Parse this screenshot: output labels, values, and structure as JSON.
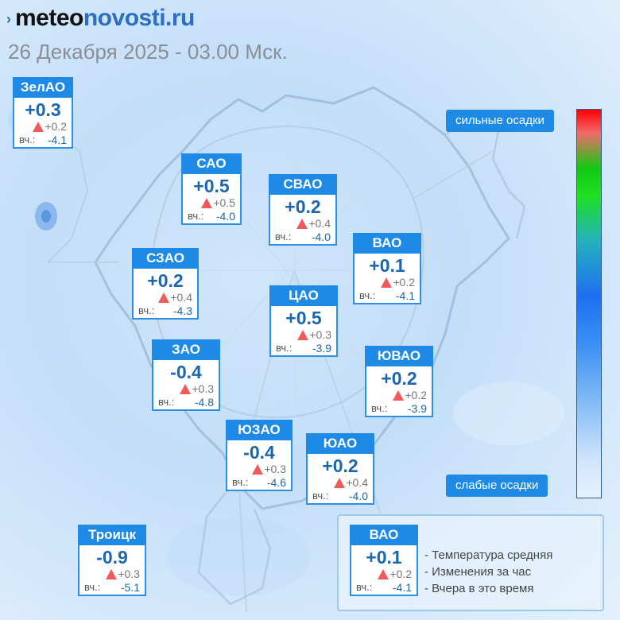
{
  "header": {
    "brand_part1": "meteo",
    "brand_part2": "novosti.ru",
    "date": "26 Декабря 2025 - 03.00 Мск."
  },
  "yesterday_label": "вч.:",
  "districts": [
    {
      "name": "ЗелАО",
      "temp": "+0.3",
      "change": "+0.2",
      "yesterday": "-4.1"
    },
    {
      "name": "САО",
      "temp": "+0.5",
      "change": "+0.5",
      "yesterday": "-4.0"
    },
    {
      "name": "СВАО",
      "temp": "+0.2",
      "change": "+0.4",
      "yesterday": "-4.0"
    },
    {
      "name": "ВАО",
      "temp": "+0.1",
      "change": "+0.2",
      "yesterday": "-4.1"
    },
    {
      "name": "СЗАО",
      "temp": "+0.2",
      "change": "+0.4",
      "yesterday": "-4.3"
    },
    {
      "name": "ЦАО",
      "temp": "+0.5",
      "change": "+0.3",
      "yesterday": "-3.9"
    },
    {
      "name": "ЗАО",
      "temp": "-0.4",
      "change": "+0.3",
      "yesterday": "-4.8"
    },
    {
      "name": "ЮВАО",
      "temp": "+0.2",
      "change": "+0.2",
      "yesterday": "-3.9"
    },
    {
      "name": "ЮЗАО",
      "temp": "-0.4",
      "change": "+0.3",
      "yesterday": "-4.6"
    },
    {
      "name": "ЮАО",
      "temp": "+0.2",
      "change": "+0.4",
      "yesterday": "-4.0"
    },
    {
      "name": "Троицк",
      "temp": "-0.9",
      "change": "+0.3",
      "yesterday": "-5.1"
    }
  ],
  "scale": {
    "top_label": "сильные осадки",
    "bottom_label": "слабые осадки"
  },
  "legend": {
    "sample": {
      "name": "ВАО",
      "temp": "+0.1",
      "change": "+0.2",
      "yesterday": "-4.1"
    },
    "line1": "- Температура средняя",
    "line2": "- Изменения за час",
    "line3": "- Вчера в это время"
  },
  "colors": {
    "card_header": "#1f8ae6",
    "temp_text": "#1b66b0",
    "change_triangle": "#f05a5a"
  }
}
